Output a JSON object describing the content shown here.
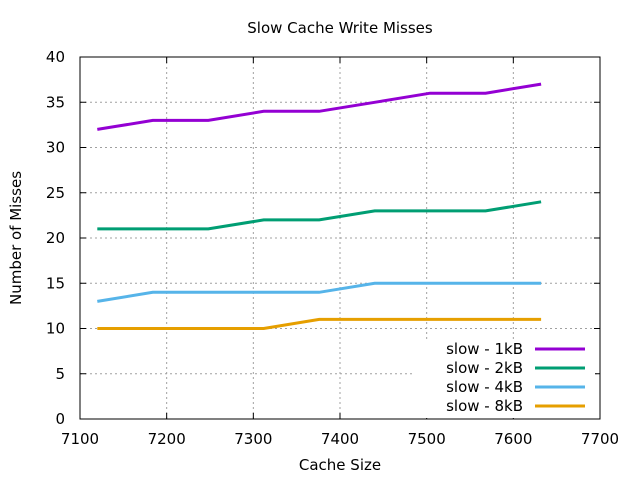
{
  "chart_data": {
    "type": "line",
    "title": "Slow Cache Write Misses",
    "xlabel": "Cache Size",
    "ylabel": "Number of Misses",
    "xlim": [
      7100,
      7700
    ],
    "ylim": [
      0,
      40
    ],
    "xticks": [
      7100,
      7200,
      7300,
      7400,
      7500,
      7600,
      7700
    ],
    "yticks": [
      0,
      5,
      10,
      15,
      20,
      25,
      30,
      35,
      40
    ],
    "grid": true,
    "legend_position": "bottom-right",
    "x": [
      7120,
      7184,
      7248,
      7312,
      7376,
      7440,
      7504,
      7568,
      7632
    ],
    "series": [
      {
        "name": "slow - 1kB",
        "color": "#9400d3",
        "values": [
          32,
          33,
          33,
          34,
          34,
          35,
          36,
          36,
          37
        ]
      },
      {
        "name": "slow - 2kB",
        "color": "#009e73",
        "values": [
          21,
          21,
          21,
          22,
          22,
          23,
          23,
          23,
          24
        ]
      },
      {
        "name": "slow - 4kB",
        "color": "#56b4e9",
        "values": [
          13,
          14,
          14,
          14,
          14,
          15,
          15,
          15,
          15
        ]
      },
      {
        "name": "slow - 8kB",
        "color": "#e69f00",
        "values": [
          10,
          10,
          10,
          10,
          11,
          11,
          11,
          11,
          11
        ]
      }
    ]
  }
}
